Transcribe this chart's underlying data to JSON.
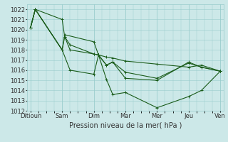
{
  "xlabel": "Pression niveau de la mer( hPa )",
  "background_color": "#cce8e8",
  "grid_color": "#99cccc",
  "line_color": "#1a5c1a",
  "xtick_labels": [
    "Ditioun",
    "Sam",
    "Dim",
    "Mar",
    "Mer",
    "Jeu",
    "Ven"
  ],
  "ylim": [
    1012,
    1022.5
  ],
  "yticks": [
    1012,
    1013,
    1014,
    1015,
    1016,
    1017,
    1018,
    1019,
    1020,
    1021,
    1022
  ],
  "xlim": [
    -0.1,
    6.1
  ],
  "series1_x": [
    0.0,
    0.15,
    1.0,
    1.08,
    1.25,
    2.0,
    2.15,
    2.4,
    2.6,
    3.0,
    4.0,
    5.0,
    5.4,
    6.0
  ],
  "series1_y": [
    1020.2,
    1022.0,
    1021.0,
    1019.3,
    1018.0,
    1017.6,
    1017.5,
    1017.3,
    1017.2,
    1016.9,
    1016.6,
    1016.3,
    1016.5,
    1015.9
  ],
  "series2_x": [
    0.0,
    0.15,
    1.0,
    1.25,
    2.0,
    2.15,
    2.4,
    2.6,
    3.0,
    4.0,
    5.0,
    5.4,
    6.0
  ],
  "series2_y": [
    1020.2,
    1022.0,
    1018.0,
    1016.0,
    1015.6,
    1017.5,
    1015.1,
    1013.6,
    1013.8,
    1012.3,
    1013.4,
    1014.0,
    1015.9
  ],
  "series3_x": [
    0.0,
    0.15,
    1.0,
    1.08,
    2.0,
    2.15,
    2.4,
    2.6,
    3.0,
    4.0,
    5.0,
    5.4,
    6.0
  ],
  "series3_y": [
    1020.2,
    1022.0,
    1018.0,
    1019.5,
    1018.8,
    1017.5,
    1016.5,
    1016.8,
    1015.8,
    1015.2,
    1016.7,
    1016.3,
    1015.9
  ],
  "series4_x": [
    0.0,
    0.15,
    1.0,
    1.08,
    1.25,
    2.0,
    2.15,
    2.4,
    2.6,
    3.0,
    4.0,
    5.0,
    5.4,
    6.0
  ],
  "series4_y": [
    1020.2,
    1022.0,
    1018.0,
    1019.3,
    1018.5,
    1017.6,
    1017.5,
    1016.5,
    1016.8,
    1015.2,
    1015.0,
    1016.8,
    1016.3,
    1015.9
  ],
  "marker": "+",
  "marker_size": 3,
  "line_width": 0.8,
  "fontsize_xlabel": 7,
  "fontsize_ticks": 6
}
